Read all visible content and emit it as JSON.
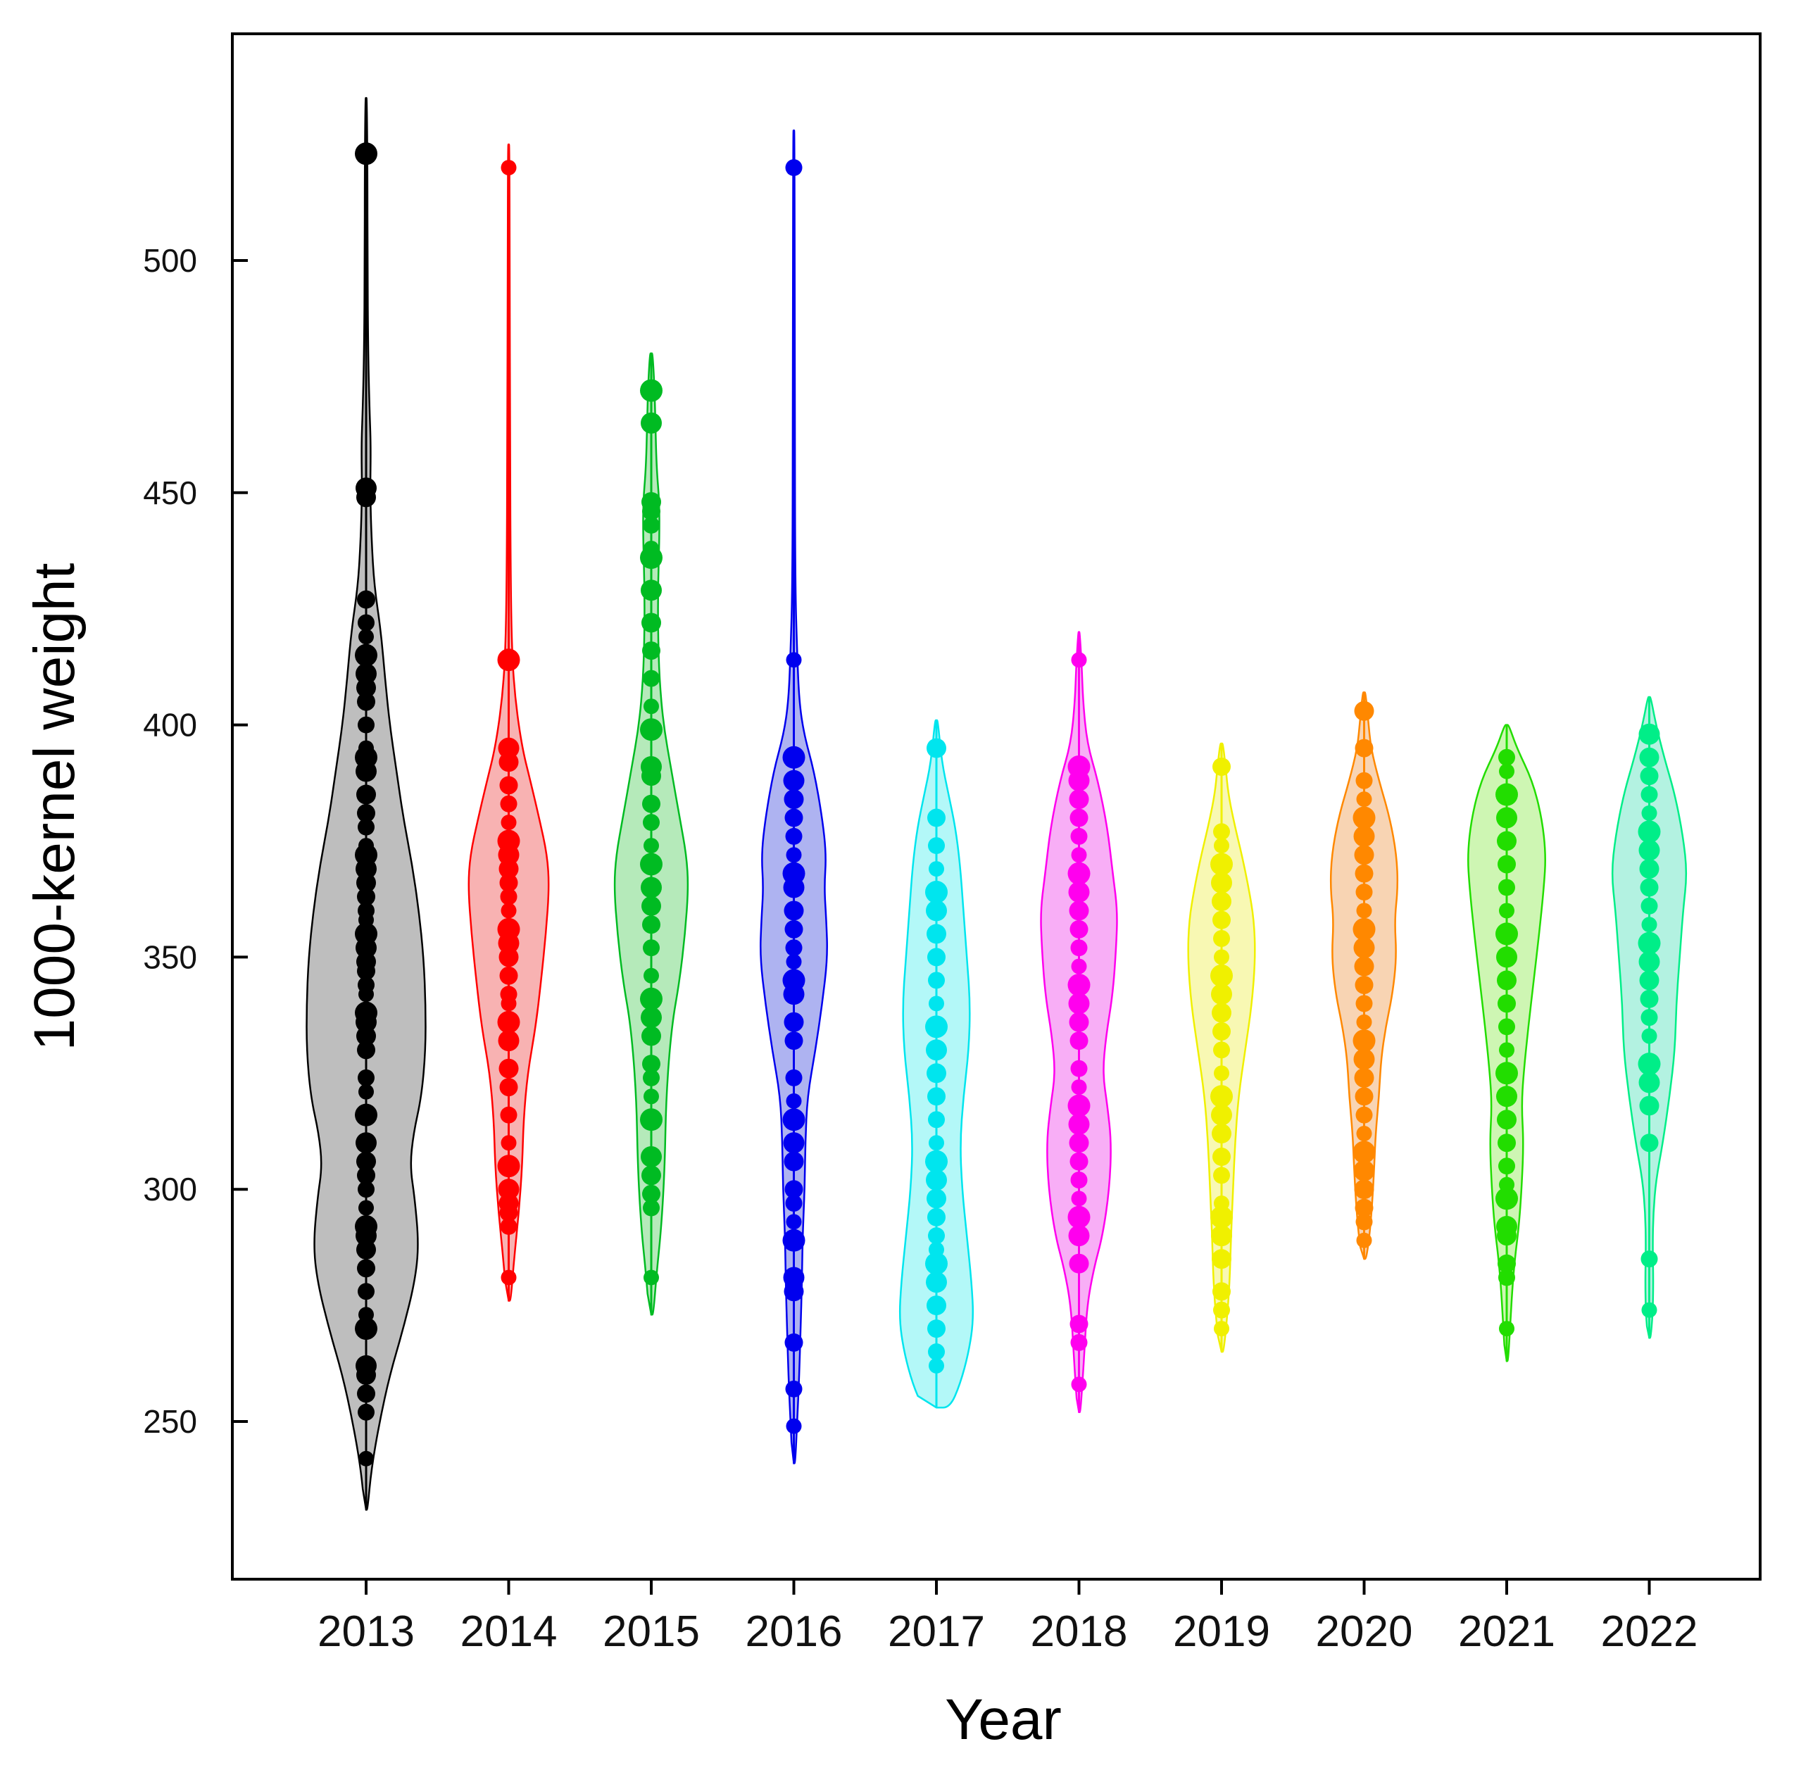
{
  "chart_data": {
    "type": "violin",
    "xlabel": "Year",
    "ylabel": "1000-kernel weight",
    "ylim": [
      215,
      550
    ],
    "yticks": [
      250,
      300,
      350,
      400,
      450,
      500
    ],
    "categories": [
      "2013",
      "2014",
      "2015",
      "2016",
      "2017",
      "2018",
      "2019",
      "2020",
      "2021",
      "2022"
    ],
    "grid": false,
    "legend": "none",
    "series": [
      {
        "category": "2013",
        "color": "#000000",
        "fill": "#b3b3b3",
        "range": [
          231,
          535
        ],
        "density": [
          [
            231,
            0.02
          ],
          [
            240,
            0.08
          ],
          [
            250,
            0.2
          ],
          [
            260,
            0.35
          ],
          [
            270,
            0.55
          ],
          [
            280,
            0.72
          ],
          [
            288,
            0.78
          ],
          [
            298,
            0.72
          ],
          [
            305,
            0.65
          ],
          [
            312,
            0.7
          ],
          [
            320,
            0.82
          ],
          [
            330,
            0.88
          ],
          [
            340,
            0.88
          ],
          [
            350,
            0.85
          ],
          [
            360,
            0.78
          ],
          [
            370,
            0.68
          ],
          [
            380,
            0.55
          ],
          [
            390,
            0.45
          ],
          [
            400,
            0.35
          ],
          [
            410,
            0.28
          ],
          [
            420,
            0.22
          ],
          [
            430,
            0.12
          ],
          [
            440,
            0.08
          ],
          [
            450,
            0.06
          ],
          [
            460,
            0.07
          ],
          [
            468,
            0.05
          ],
          [
            480,
            0.03
          ],
          [
            500,
            0.02
          ],
          [
            520,
            0.02
          ],
          [
            535,
            0.01
          ]
        ],
        "points": [
          242,
          252,
          256,
          260,
          262,
          270,
          273,
          278,
          283,
          287,
          290,
          292,
          296,
          300,
          303,
          306,
          310,
          316,
          321,
          324,
          330,
          333,
          336,
          338,
          342,
          344,
          347,
          349,
          352,
          355,
          358,
          360,
          363,
          366,
          369,
          372,
          374,
          378,
          381,
          385,
          390,
          393,
          395,
          400,
          405,
          408,
          411,
          415,
          419,
          422,
          427,
          449,
          451,
          523
        ]
      },
      {
        "category": "2014",
        "color": "#ff0000",
        "fill": "#f7a5a5",
        "range": [
          276,
          525
        ],
        "density": [
          [
            276,
            0.03
          ],
          [
            285,
            0.08
          ],
          [
            295,
            0.15
          ],
          [
            305,
            0.2
          ],
          [
            315,
            0.22
          ],
          [
            325,
            0.28
          ],
          [
            335,
            0.4
          ],
          [
            345,
            0.48
          ],
          [
            355,
            0.55
          ],
          [
            365,
            0.6
          ],
          [
            372,
            0.57
          ],
          [
            380,
            0.45
          ],
          [
            388,
            0.32
          ],
          [
            395,
            0.2
          ],
          [
            405,
            0.1
          ],
          [
            415,
            0.05
          ],
          [
            430,
            0.03
          ],
          [
            460,
            0.02
          ],
          [
            500,
            0.015
          ],
          [
            525,
            0.01
          ]
        ],
        "points": [
          281,
          292,
          295,
          297,
          300,
          305,
          310,
          316,
          322,
          326,
          332,
          336,
          340,
          342,
          346,
          350,
          353,
          356,
          360,
          363,
          366,
          369,
          372,
          375,
          379,
          383,
          387,
          392,
          395,
          414,
          520
        ]
      },
      {
        "category": "2015",
        "color": "#00bb22",
        "fill": "#a8e6ae",
        "range": [
          273,
          480
        ],
        "density": [
          [
            273,
            0.03
          ],
          [
            282,
            0.08
          ],
          [
            292,
            0.15
          ],
          [
            305,
            0.2
          ],
          [
            320,
            0.22
          ],
          [
            335,
            0.3
          ],
          [
            345,
            0.42
          ],
          [
            355,
            0.5
          ],
          [
            365,
            0.55
          ],
          [
            372,
            0.52
          ],
          [
            380,
            0.42
          ],
          [
            390,
            0.3
          ],
          [
            400,
            0.18
          ],
          [
            410,
            0.12
          ],
          [
            420,
            0.1
          ],
          [
            430,
            0.1
          ],
          [
            440,
            0.12
          ],
          [
            448,
            0.12
          ],
          [
            455,
            0.08
          ],
          [
            465,
            0.06
          ],
          [
            472,
            0.05
          ],
          [
            480,
            0.02
          ]
        ],
        "points": [
          281,
          296,
          299,
          303,
          307,
          315,
          320,
          324,
          327,
          333,
          337,
          341,
          346,
          352,
          357,
          361,
          365,
          370,
          374,
          379,
          383,
          389,
          391,
          399,
          404,
          410,
          416,
          422,
          429,
          436,
          438,
          443,
          446,
          448,
          465,
          472
        ]
      },
      {
        "category": "2016",
        "color": "#0000ee",
        "fill": "#a0a6ee",
        "range": [
          241,
          528
        ],
        "density": [
          [
            241,
            0.02
          ],
          [
            250,
            0.05
          ],
          [
            260,
            0.08
          ],
          [
            270,
            0.1
          ],
          [
            280,
            0.12
          ],
          [
            290,
            0.13
          ],
          [
            300,
            0.16
          ],
          [
            310,
            0.17
          ],
          [
            320,
            0.2
          ],
          [
            330,
            0.32
          ],
          [
            340,
            0.42
          ],
          [
            350,
            0.5
          ],
          [
            358,
            0.48
          ],
          [
            365,
            0.45
          ],
          [
            372,
            0.48
          ],
          [
            380,
            0.42
          ],
          [
            390,
            0.3
          ],
          [
            398,
            0.15
          ],
          [
            405,
            0.08
          ],
          [
            415,
            0.05
          ],
          [
            430,
            0.02
          ],
          [
            470,
            0.015
          ],
          [
            528,
            0.01
          ]
        ],
        "points": [
          249,
          257,
          267,
          278,
          281,
          289,
          293,
          297,
          300,
          306,
          310,
          315,
          319,
          324,
          332,
          336,
          342,
          345,
          349,
          352,
          356,
          360,
          365,
          368,
          372,
          376,
          380,
          384,
          388,
          393,
          414,
          520
        ]
      },
      {
        "category": "2017",
        "color": "#00e5ee",
        "fill": "#a6f7f7",
        "range": [
          253,
          401
        ],
        "density": [
          [
            253,
            0.2
          ],
          [
            258,
            0.35
          ],
          [
            265,
            0.48
          ],
          [
            272,
            0.55
          ],
          [
            280,
            0.52
          ],
          [
            290,
            0.45
          ],
          [
            300,
            0.38
          ],
          [
            310,
            0.35
          ],
          [
            320,
            0.4
          ],
          [
            330,
            0.48
          ],
          [
            340,
            0.5
          ],
          [
            350,
            0.45
          ],
          [
            360,
            0.4
          ],
          [
            370,
            0.35
          ],
          [
            378,
            0.28
          ],
          [
            385,
            0.18
          ],
          [
            392,
            0.08
          ],
          [
            401,
            0.02
          ]
        ],
        "points": [
          262,
          265,
          270,
          275,
          280,
          284,
          287,
          290,
          294,
          298,
          302,
          306,
          310,
          315,
          320,
          325,
          330,
          335,
          340,
          345,
          350,
          355,
          360,
          364,
          369,
          374,
          380,
          395
        ]
      },
      {
        "category": "2018",
        "color": "#ff00ee",
        "fill": "#f7a0f5",
        "range": [
          252,
          420
        ],
        "density": [
          [
            252,
            0.02
          ],
          [
            258,
            0.05
          ],
          [
            265,
            0.08
          ],
          [
            275,
            0.12
          ],
          [
            283,
            0.22
          ],
          [
            290,
            0.35
          ],
          [
            300,
            0.45
          ],
          [
            310,
            0.48
          ],
          [
            318,
            0.42
          ],
          [
            325,
            0.35
          ],
          [
            333,
            0.4
          ],
          [
            342,
            0.5
          ],
          [
            352,
            0.55
          ],
          [
            360,
            0.57
          ],
          [
            368,
            0.5
          ],
          [
            378,
            0.42
          ],
          [
            388,
            0.28
          ],
          [
            396,
            0.12
          ],
          [
            405,
            0.06
          ],
          [
            413,
            0.04
          ],
          [
            420,
            0.01
          ]
        ],
        "points": [
          258,
          267,
          271,
          284,
          290,
          294,
          298,
          302,
          306,
          310,
          314,
          318,
          322,
          326,
          332,
          336,
          340,
          344,
          348,
          352,
          356,
          360,
          364,
          368,
          372,
          376,
          380,
          384,
          388,
          391,
          414
        ]
      },
      {
        "category": "2019",
        "color": "#f0f000",
        "fill": "#f7f7a6",
        "range": [
          265,
          396
        ],
        "density": [
          [
            265,
            0.03
          ],
          [
            272,
            0.08
          ],
          [
            280,
            0.12
          ],
          [
            290,
            0.14
          ],
          [
            300,
            0.17
          ],
          [
            310,
            0.2
          ],
          [
            320,
            0.25
          ],
          [
            330,
            0.35
          ],
          [
            340,
            0.45
          ],
          [
            350,
            0.5
          ],
          [
            358,
            0.48
          ],
          [
            365,
            0.4
          ],
          [
            372,
            0.3
          ],
          [
            378,
            0.2
          ],
          [
            385,
            0.1
          ],
          [
            391,
            0.06
          ],
          [
            396,
            0.02
          ]
        ],
        "points": [
          270,
          274,
          278,
          285,
          290,
          294,
          297,
          303,
          307,
          312,
          316,
          320,
          325,
          330,
          334,
          338,
          342,
          346,
          350,
          354,
          358,
          362,
          366,
          370,
          374,
          377,
          391
        ]
      },
      {
        "category": "2020",
        "color": "#ff8800",
        "fill": "#f7cda6",
        "range": [
          285,
          407
        ],
        "density": [
          [
            285,
            0.03
          ],
          [
            290,
            0.08
          ],
          [
            297,
            0.12
          ],
          [
            305,
            0.15
          ],
          [
            312,
            0.17
          ],
          [
            320,
            0.22
          ],
          [
            328,
            0.25
          ],
          [
            335,
            0.32
          ],
          [
            342,
            0.42
          ],
          [
            350,
            0.48
          ],
          [
            358,
            0.45
          ],
          [
            365,
            0.5
          ],
          [
            372,
            0.48
          ],
          [
            380,
            0.38
          ],
          [
            388,
            0.22
          ],
          [
            395,
            0.1
          ],
          [
            401,
            0.06
          ],
          [
            407,
            0.02
          ]
        ],
        "points": [
          289,
          293,
          296,
          300,
          304,
          308,
          312,
          316,
          320,
          324,
          328,
          332,
          336,
          340,
          344,
          348,
          352,
          356,
          360,
          364,
          368,
          372,
          376,
          380,
          384,
          388,
          395,
          403
        ]
      },
      {
        "category": "2021",
        "color": "#22dd00",
        "fill": "#c6f5a6",
        "range": [
          263,
          400
        ],
        "density": [
          [
            263,
            0.02
          ],
          [
            270,
            0.05
          ],
          [
            278,
            0.08
          ],
          [
            285,
            0.12
          ],
          [
            292,
            0.18
          ],
          [
            300,
            0.22
          ],
          [
            310,
            0.25
          ],
          [
            318,
            0.22
          ],
          [
            325,
            0.25
          ],
          [
            335,
            0.32
          ],
          [
            345,
            0.4
          ],
          [
            355,
            0.48
          ],
          [
            365,
            0.55
          ],
          [
            372,
            0.58
          ],
          [
            380,
            0.52
          ],
          [
            388,
            0.38
          ],
          [
            395,
            0.15
          ],
          [
            400,
            0.03
          ]
        ],
        "points": [
          270,
          281,
          284,
          290,
          292,
          298,
          301,
          305,
          310,
          315,
          320,
          325,
          330,
          335,
          340,
          345,
          350,
          355,
          360,
          365,
          370,
          375,
          380,
          385,
          390,
          393
        ]
      },
      {
        "category": "2022",
        "color": "#00ee88",
        "fill": "#a6f0dc",
        "range": [
          268,
          406
        ],
        "density": [
          [
            268,
            0.02
          ],
          [
            273,
            0.05
          ],
          [
            280,
            0.06
          ],
          [
            288,
            0.05
          ],
          [
            295,
            0.06
          ],
          [
            302,
            0.1
          ],
          [
            310,
            0.2
          ],
          [
            320,
            0.3
          ],
          [
            330,
            0.38
          ],
          [
            340,
            0.4
          ],
          [
            350,
            0.45
          ],
          [
            360,
            0.5
          ],
          [
            368,
            0.56
          ],
          [
            376,
            0.5
          ],
          [
            385,
            0.38
          ],
          [
            393,
            0.22
          ],
          [
            400,
            0.1
          ],
          [
            406,
            0.02
          ]
        ],
        "points": [
          274,
          285,
          310,
          318,
          323,
          327,
          333,
          337,
          341,
          345,
          349,
          353,
          357,
          361,
          365,
          369,
          373,
          377,
          381,
          385,
          389,
          393,
          398
        ]
      }
    ]
  }
}
